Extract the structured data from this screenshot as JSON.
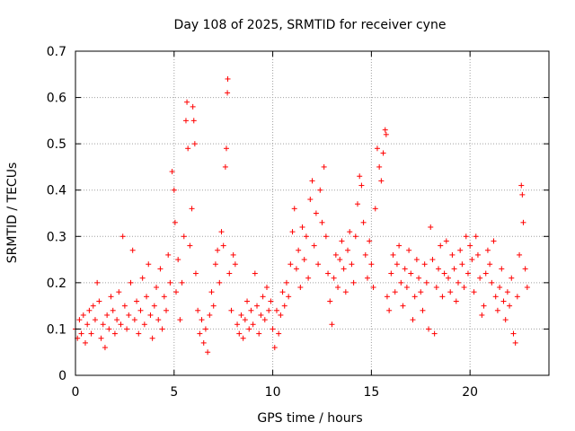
{
  "chart_data": {
    "type": "scatter",
    "title": "Day 108 of 2025, SRMTID for receiver cyne",
    "xlabel": "GPS time / hours",
    "ylabel": "SRMTID / TECUs",
    "xlim": [
      0,
      24
    ],
    "ylim": [
      0,
      0.7
    ],
    "xticks": [
      0,
      5,
      10,
      15,
      20
    ],
    "xtick_labels": [
      "0",
      "5",
      "10",
      "15",
      "20"
    ],
    "yticks": [
      0,
      0.1,
      0.2,
      0.3,
      0.4,
      0.5,
      0.6,
      0.7
    ],
    "ytick_labels": [
      "0",
      "0.1",
      "0.2",
      "0.3",
      "0.4",
      "0.5",
      "0.6",
      "0.7"
    ],
    "grid": true,
    "marker": "+",
    "marker_color": "#ff0000",
    "series": [
      {
        "name": "SRMTID",
        "points": [
          [
            0.0,
            0.1
          ],
          [
            0.1,
            0.08
          ],
          [
            0.2,
            0.12
          ],
          [
            0.3,
            0.09
          ],
          [
            0.4,
            0.13
          ],
          [
            0.5,
            0.07
          ],
          [
            0.6,
            0.11
          ],
          [
            0.7,
            0.14
          ],
          [
            0.8,
            0.09
          ],
          [
            0.9,
            0.15
          ],
          [
            1.0,
            0.12
          ],
          [
            1.1,
            0.2
          ],
          [
            1.2,
            0.16
          ],
          [
            1.3,
            0.08
          ],
          [
            1.4,
            0.11
          ],
          [
            1.5,
            0.06
          ],
          [
            1.6,
            0.13
          ],
          [
            1.7,
            0.1
          ],
          [
            1.8,
            0.17
          ],
          [
            1.9,
            0.14
          ],
          [
            2.0,
            0.09
          ],
          [
            2.1,
            0.12
          ],
          [
            2.2,
            0.18
          ],
          [
            2.3,
            0.11
          ],
          [
            2.4,
            0.3
          ],
          [
            2.5,
            0.15
          ],
          [
            2.6,
            0.1
          ],
          [
            2.7,
            0.13
          ],
          [
            2.8,
            0.2
          ],
          [
            2.9,
            0.27
          ],
          [
            3.0,
            0.12
          ],
          [
            3.1,
            0.16
          ],
          [
            3.2,
            0.09
          ],
          [
            3.3,
            0.14
          ],
          [
            3.4,
            0.21
          ],
          [
            3.5,
            0.11
          ],
          [
            3.6,
            0.17
          ],
          [
            3.7,
            0.24
          ],
          [
            3.8,
            0.13
          ],
          [
            3.9,
            0.08
          ],
          [
            4.0,
            0.15
          ],
          [
            4.1,
            0.19
          ],
          [
            4.2,
            0.12
          ],
          [
            4.3,
            0.23
          ],
          [
            4.4,
            0.1
          ],
          [
            4.5,
            0.17
          ],
          [
            4.6,
            0.14
          ],
          [
            4.7,
            0.26
          ],
          [
            4.8,
            0.2
          ],
          [
            4.9,
            0.44
          ],
          [
            5.0,
            0.4
          ],
          [
            5.05,
            0.33
          ],
          [
            5.1,
            0.18
          ],
          [
            5.2,
            0.25
          ],
          [
            5.3,
            0.12
          ],
          [
            5.4,
            0.2
          ],
          [
            5.5,
            0.3
          ],
          [
            5.6,
            0.55
          ],
          [
            5.65,
            0.59
          ],
          [
            5.7,
            0.49
          ],
          [
            5.8,
            0.28
          ],
          [
            5.9,
            0.36
          ],
          [
            5.95,
            0.58
          ],
          [
            6.0,
            0.55
          ],
          [
            6.05,
            0.5
          ],
          [
            6.1,
            0.22
          ],
          [
            6.2,
            0.14
          ],
          [
            6.3,
            0.09
          ],
          [
            6.4,
            0.12
          ],
          [
            6.5,
            0.07
          ],
          [
            6.6,
            0.1
          ],
          [
            6.7,
            0.05
          ],
          [
            6.8,
            0.13
          ],
          [
            6.9,
            0.18
          ],
          [
            7.0,
            0.15
          ],
          [
            7.1,
            0.24
          ],
          [
            7.2,
            0.27
          ],
          [
            7.3,
            0.2
          ],
          [
            7.4,
            0.31
          ],
          [
            7.5,
            0.28
          ],
          [
            7.6,
            0.45
          ],
          [
            7.65,
            0.49
          ],
          [
            7.7,
            0.61
          ],
          [
            7.72,
            0.64
          ],
          [
            7.8,
            0.22
          ],
          [
            7.9,
            0.14
          ],
          [
            8.0,
            0.26
          ],
          [
            8.1,
            0.24
          ],
          [
            8.2,
            0.11
          ],
          [
            8.3,
            0.09
          ],
          [
            8.4,
            0.13
          ],
          [
            8.5,
            0.08
          ],
          [
            8.6,
            0.12
          ],
          [
            8.7,
            0.16
          ],
          [
            8.8,
            0.1
          ],
          [
            8.9,
            0.14
          ],
          [
            9.0,
            0.11
          ],
          [
            9.1,
            0.22
          ],
          [
            9.2,
            0.15
          ],
          [
            9.3,
            0.09
          ],
          [
            9.4,
            0.13
          ],
          [
            9.5,
            0.17
          ],
          [
            9.6,
            0.12
          ],
          [
            9.7,
            0.19
          ],
          [
            9.8,
            0.14
          ],
          [
            9.9,
            0.16
          ],
          [
            10.0,
            0.1
          ],
          [
            10.1,
            0.06
          ],
          [
            10.2,
            0.14
          ],
          [
            10.3,
            0.09
          ],
          [
            10.4,
            0.13
          ],
          [
            10.5,
            0.18
          ],
          [
            10.6,
            0.15
          ],
          [
            10.7,
            0.2
          ],
          [
            10.8,
            0.17
          ],
          [
            10.9,
            0.24
          ],
          [
            11.0,
            0.31
          ],
          [
            11.1,
            0.36
          ],
          [
            11.2,
            0.23
          ],
          [
            11.3,
            0.27
          ],
          [
            11.4,
            0.19
          ],
          [
            11.5,
            0.32
          ],
          [
            11.6,
            0.25
          ],
          [
            11.7,
            0.3
          ],
          [
            11.8,
            0.21
          ],
          [
            11.9,
            0.38
          ],
          [
            12.0,
            0.42
          ],
          [
            12.1,
            0.28
          ],
          [
            12.2,
            0.35
          ],
          [
            12.3,
            0.24
          ],
          [
            12.4,
            0.4
          ],
          [
            12.5,
            0.33
          ],
          [
            12.6,
            0.45
          ],
          [
            12.7,
            0.3
          ],
          [
            12.8,
            0.22
          ],
          [
            12.9,
            0.16
          ],
          [
            13.0,
            0.11
          ],
          [
            13.1,
            0.21
          ],
          [
            13.2,
            0.26
          ],
          [
            13.3,
            0.19
          ],
          [
            13.4,
            0.25
          ],
          [
            13.5,
            0.29
          ],
          [
            13.6,
            0.23
          ],
          [
            13.7,
            0.18
          ],
          [
            13.8,
            0.27
          ],
          [
            13.9,
            0.31
          ],
          [
            14.0,
            0.24
          ],
          [
            14.1,
            0.2
          ],
          [
            14.2,
            0.3
          ],
          [
            14.3,
            0.37
          ],
          [
            14.4,
            0.43
          ],
          [
            14.5,
            0.41
          ],
          [
            14.6,
            0.33
          ],
          [
            14.7,
            0.26
          ],
          [
            14.8,
            0.21
          ],
          [
            14.9,
            0.29
          ],
          [
            15.0,
            0.24
          ],
          [
            15.1,
            0.19
          ],
          [
            15.2,
            0.36
          ],
          [
            15.3,
            0.49
          ],
          [
            15.4,
            0.45
          ],
          [
            15.5,
            0.42
          ],
          [
            15.6,
            0.48
          ],
          [
            15.7,
            0.53
          ],
          [
            15.75,
            0.52
          ],
          [
            15.8,
            0.17
          ],
          [
            15.9,
            0.14
          ],
          [
            16.0,
            0.22
          ],
          [
            16.1,
            0.26
          ],
          [
            16.2,
            0.18
          ],
          [
            16.3,
            0.24
          ],
          [
            16.4,
            0.28
          ],
          [
            16.5,
            0.2
          ],
          [
            16.6,
            0.15
          ],
          [
            16.7,
            0.23
          ],
          [
            16.8,
            0.19
          ],
          [
            16.9,
            0.27
          ],
          [
            17.0,
            0.22
          ],
          [
            17.1,
            0.12
          ],
          [
            17.2,
            0.17
          ],
          [
            17.3,
            0.25
          ],
          [
            17.4,
            0.21
          ],
          [
            17.5,
            0.18
          ],
          [
            17.6,
            0.14
          ],
          [
            17.7,
            0.24
          ],
          [
            17.8,
            0.2
          ],
          [
            17.9,
            0.1
          ],
          [
            18.0,
            0.32
          ],
          [
            18.1,
            0.25
          ],
          [
            18.2,
            0.09
          ],
          [
            18.3,
            0.19
          ],
          [
            18.4,
            0.23
          ],
          [
            18.5,
            0.28
          ],
          [
            18.6,
            0.17
          ],
          [
            18.7,
            0.22
          ],
          [
            18.8,
            0.29
          ],
          [
            18.9,
            0.21
          ],
          [
            19.0,
            0.18
          ],
          [
            19.1,
            0.26
          ],
          [
            19.2,
            0.23
          ],
          [
            19.3,
            0.16
          ],
          [
            19.4,
            0.2
          ],
          [
            19.5,
            0.27
          ],
          [
            19.6,
            0.24
          ],
          [
            19.7,
            0.19
          ],
          [
            19.8,
            0.3
          ],
          [
            19.9,
            0.22
          ],
          [
            20.0,
            0.28
          ],
          [
            20.1,
            0.25
          ],
          [
            20.2,
            0.18
          ],
          [
            20.3,
            0.3
          ],
          [
            20.4,
            0.26
          ],
          [
            20.5,
            0.21
          ],
          [
            20.6,
            0.13
          ],
          [
            20.7,
            0.15
          ],
          [
            20.8,
            0.22
          ],
          [
            20.9,
            0.27
          ],
          [
            21.0,
            0.24
          ],
          [
            21.1,
            0.2
          ],
          [
            21.2,
            0.29
          ],
          [
            21.3,
            0.17
          ],
          [
            21.4,
            0.14
          ],
          [
            21.5,
            0.19
          ],
          [
            21.6,
            0.23
          ],
          [
            21.7,
            0.16
          ],
          [
            21.8,
            0.12
          ],
          [
            21.9,
            0.18
          ],
          [
            22.0,
            0.15
          ],
          [
            22.1,
            0.21
          ],
          [
            22.2,
            0.09
          ],
          [
            22.3,
            0.07
          ],
          [
            22.4,
            0.17
          ],
          [
            22.5,
            0.26
          ],
          [
            22.6,
            0.41
          ],
          [
            22.65,
            0.39
          ],
          [
            22.7,
            0.33
          ],
          [
            22.8,
            0.23
          ],
          [
            22.9,
            0.19
          ]
        ]
      }
    ]
  }
}
